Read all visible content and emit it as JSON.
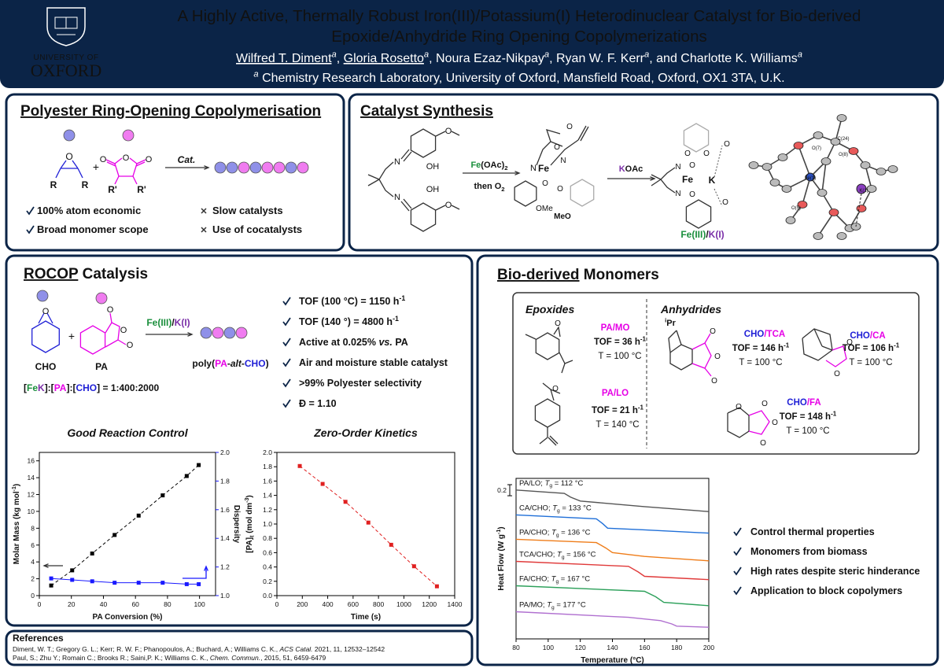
{
  "header": {
    "logo": {
      "line1": "UNIVERSITY OF",
      "line2": "OXFORD"
    },
    "title_line1": "A Highly Active, Thermally Robust Iron(III)/Potassium(I) Heterodinuclear Catalyst for Bio-derived",
    "title_line2": "Epoxide/Anhydride Ring Opening Copolymerizations",
    "authors": [
      {
        "name": "Wilfred T. Diment",
        "sup": "a",
        "after": ", ",
        "underlined": true
      },
      {
        "name": "Gloria Rosetto",
        "sup": "a",
        "after": ", ",
        "underlined": true
      },
      {
        "name": "Noura Ezaz-Nikpay",
        "sup": "a",
        "after": ", "
      },
      {
        "name": "Ryan W. F. Kerr",
        "sup": "a",
        "after": ", and "
      },
      {
        "name": "Charlotte K. Williams",
        "sup": "a"
      }
    ],
    "affiliation": {
      "sup": "a",
      "text": " Chemistry Research Laboratory, University of Oxford, Mansfield Road, Oxford, OX1 3TA, U.K."
    }
  },
  "structures": {
    "o": "O",
    "n": "N",
    "oh": "OH",
    "fe": "Fe",
    "k": "K",
    "ome": "OMe",
    "meo": "MeO"
  },
  "rocop_intro": {
    "title": "Polyester Ring-Opening Copolymerisation",
    "epoxide_labels": [
      "R",
      "R"
    ],
    "plus": "+",
    "anhydride_labels": [
      "R'",
      "R'"
    ],
    "arrow_label": "Cat.",
    "pros": [
      "100% atom economic",
      "Broad monomer scope"
    ],
    "cons": [
      "Slow catalysts",
      "Use of cocatalysts"
    ]
  },
  "synthesis": {
    "title": "Catalyst Synthesis",
    "step1_reagent": [
      {
        "text": "Fe",
        "color": "#1a8f3c"
      },
      {
        "text": "(OAc)"
      },
      {
        "text": "2",
        "sub": true
      }
    ],
    "step1_then": [
      {
        "text": "then O"
      },
      {
        "text": "2",
        "sub": true
      }
    ],
    "step2_reagent": [
      {
        "text": "K",
        "color": "#7b2fa8"
      },
      {
        "text": "OAc"
      }
    ],
    "product_name": [
      {
        "text": "Fe(III)",
        "color": "#1a8f3c"
      },
      {
        "text": "/"
      },
      {
        "text": "K(I)",
        "color": "#7b2fa8"
      }
    ],
    "crystal_labels": [
      "O(7)",
      "C(24)",
      "O(8)",
      "Fe(1)",
      "K(1)",
      "O(5)"
    ]
  },
  "rocop_catalysis": {
    "title": [
      {
        "text": "ROCOP",
        "underline": true
      },
      {
        "text": " Catalysis"
      }
    ],
    "monomer1": "CHO",
    "monomer2": "PA",
    "plus": "+",
    "catalyst": [
      {
        "text": "Fe(III)",
        "color": "#1a8f3c"
      },
      {
        "text": "/"
      },
      {
        "text": "K(I)",
        "color": "#7b2fa8"
      }
    ],
    "product": [
      {
        "text": "poly("
      },
      {
        "text": "PA",
        "color": "#e600e6"
      },
      {
        "text": "-"
      },
      {
        "text": "alt",
        "italic": true
      },
      {
        "text": "-"
      },
      {
        "text": "CHO",
        "color": "#1f1fd6"
      },
      {
        "text": ")"
      }
    ],
    "ratio": [
      {
        "text": "["
      },
      {
        "text": "Fe",
        "color": "#1a8f3c"
      },
      {
        "text": "K",
        "color": "#7b2fa8"
      },
      {
        "text": "]:["
      },
      {
        "text": "PA",
        "color": "#e600e6"
      },
      {
        "text": "]:["
      },
      {
        "text": "CHO",
        "color": "#1f1fd6"
      },
      {
        "text": "] = 1:400:2000"
      }
    ],
    "bullets": [
      [
        {
          "text": "TOF (100 °C) = 1150 h"
        },
        {
          "text": "-1",
          "sup": true
        }
      ],
      [
        {
          "text": "TOF (140 °) = 4800 h"
        },
        {
          "text": "-1",
          "sup": true
        }
      ],
      [
        {
          "text": "Active at 0.025% "
        },
        {
          "text": "vs.",
          "italic": true
        },
        {
          "text": " PA"
        }
      ],
      [
        {
          "text": "Air and moisture stable catalyst"
        }
      ],
      [
        {
          "text": ">99% Polyester selectivity"
        }
      ],
      [
        {
          "text": "Đ = 1.10"
        }
      ]
    ]
  },
  "monomers": {
    "title": [
      {
        "text": "Bio-derived",
        "underline": true
      },
      {
        "text": " Monomers"
      }
    ],
    "epoxides_heading": "Epoxides",
    "anhydrides_heading": "Anhydrides",
    "ipr": [
      {
        "text": "i",
        "sup": true
      },
      {
        "text": "Pr"
      }
    ],
    "entries": [
      {
        "pair": [
          {
            "text": "PA/MO",
            "color": "#e600e6"
          }
        ],
        "tof": [
          {
            "text": "TOF = 36 h"
          },
          {
            "text": "-1",
            "sup": true
          }
        ],
        "temp": "T = 100 °C"
      },
      {
        "pair": [
          {
            "text": "PA/LO",
            "color": "#e600e6"
          }
        ],
        "tof": [
          {
            "text": "TOF = 21 h"
          },
          {
            "text": "-1",
            "sup": true
          }
        ],
        "temp": "T = 140 °C"
      },
      {
        "pair": [
          {
            "text": "CHO",
            "color": "#1f1fd6"
          },
          {
            "text": "/TCA",
            "color": "#e600e6"
          }
        ],
        "tof": [
          {
            "text": "TOF = 146 h"
          },
          {
            "text": "-1",
            "sup": true
          }
        ],
        "temp": "T = 100 °C"
      },
      {
        "pair": [
          {
            "text": "CHO",
            "color": "#1f1fd6"
          },
          {
            "text": "/CA",
            "color": "#e600e6"
          }
        ],
        "tof": [
          {
            "text": "TOF = 106 h"
          },
          {
            "text": "-1",
            "sup": true
          }
        ],
        "temp": "T = 100 °C"
      },
      {
        "pair": [
          {
            "text": "CHO",
            "color": "#1f1fd6"
          },
          {
            "text": "/FA",
            "color": "#e600e6"
          }
        ],
        "tof": [
          {
            "text": "TOF = 148 h"
          },
          {
            "text": "-1",
            "sup": true
          }
        ],
        "temp": "T = 100 °C"
      }
    ],
    "bullets": [
      "Control thermal properties",
      "Monomers from biomass",
      "High rates despite steric hinderance",
      "Application to block copolymers"
    ]
  },
  "chart_data": [
    {
      "type": "scatter",
      "title": "Good Reaction Control",
      "xlabel": "PA Conversion (%)",
      "ylabel": [
        {
          "text": "Molar Mass (kg mol"
        },
        {
          "text": "-1",
          "sup": true
        },
        {
          "text": ")"
        }
      ],
      "y2label": "Dispersity",
      "x": [
        7.4,
        20.5,
        33,
        47,
        62,
        77,
        92,
        99.5
      ],
      "xlim": [
        0,
        110
      ],
      "xticks": [
        0,
        20,
        40,
        60,
        80,
        100
      ],
      "ylim": [
        0,
        17
      ],
      "yticks": [
        0,
        2,
        4,
        6,
        8,
        10,
        12,
        14,
        16
      ],
      "y2lim": [
        1,
        2
      ],
      "y2ticks": [
        {
          "value": 1,
          "label": "1.0"
        },
        {
          "value": 1.2,
          "label": "1.2"
        },
        {
          "value": 1.4,
          "label": "1.4"
        },
        {
          "value": 1.6,
          "label": "1.6"
        },
        {
          "value": 1.8,
          "label": "1.8"
        },
        {
          "value": 2,
          "label": "2.0"
        }
      ],
      "series": [
        {
          "color": "#000000",
          "line": "dashed",
          "values": [
            1.2,
            3.0,
            5.0,
            7.2,
            9.5,
            11.9,
            14.2,
            15.5
          ]
        },
        {
          "color": "#1a1aff",
          "line": "solid",
          "axis": "y2",
          "values": [
            1.12,
            1.11,
            1.1,
            1.09,
            1.09,
            1.09,
            1.08,
            1.08
          ]
        }
      ]
    },
    {
      "type": "scatter",
      "title": "Zero-Order Kinetics",
      "xlabel": "Time (s)",
      "ylabel": [
        {
          "text": "[PA]"
        },
        {
          "text": "t",
          "sub": true
        },
        {
          "text": " (mol dm"
        },
        {
          "text": "-3",
          "sup": true
        },
        {
          "text": ")"
        }
      ],
      "x": [
        180,
        360,
        540,
        720,
        900,
        1080,
        1260
      ],
      "xlim": [
        0,
        1400
      ],
      "xticks": [
        0,
        200,
        400,
        600,
        800,
        1000,
        1200,
        1400
      ],
      "ylim": [
        0,
        2
      ],
      "yticks": [
        {
          "value": 0,
          "label": "0.0"
        },
        {
          "value": 0.2,
          "label": "0.2"
        },
        {
          "value": 0.4,
          "label": "0.4"
        },
        {
          "value": 0.6,
          "label": "0.6"
        },
        {
          "value": 0.8,
          "label": "0.8"
        },
        {
          "value": 1,
          "label": "1.0"
        },
        {
          "value": 1.2,
          "label": "1.2"
        },
        {
          "value": 1.4,
          "label": "1.4"
        },
        {
          "value": 1.6,
          "label": "1.6"
        },
        {
          "value": 1.8,
          "label": "1.8"
        },
        {
          "value": 2,
          "label": "2.0"
        }
      ],
      "series": [
        {
          "color": "#e02020",
          "line": "dashed",
          "values": [
            1.81,
            1.56,
            1.31,
            1.02,
            0.71,
            0.41,
            0.13
          ]
        }
      ]
    },
    {
      "type": "line",
      "xlabel": "Temperature (°C)",
      "ylabel": [
        {
          "text": "Heat Flow (W g"
        },
        {
          "text": "-1",
          "sup": true
        },
        {
          "text": ")"
        }
      ],
      "xlim": [
        80,
        200
      ],
      "xticks": [
        80,
        100,
        120,
        140,
        160,
        180,
        200
      ],
      "ylim": [
        0,
        2.9
      ],
      "scale_bar": 0.2,
      "series": [
        {
          "label": [
            {
              "text": "PA/LO; "
            },
            {
              "text": "T",
              "italic": true
            },
            {
              "text": "g",
              "sub": true
            },
            {
              "text": " = 112 °C"
            }
          ],
          "color": "#555555",
          "x": [
            80,
            110,
            114,
            120,
            160,
            200
          ],
          "values": [
            2.69,
            2.63,
            2.56,
            2.49,
            2.39,
            2.3
          ]
        },
        {
          "label": [
            {
              "text": "CA/CHO; "
            },
            {
              "text": "T",
              "italic": true
            },
            {
              "text": "g",
              "sub": true
            },
            {
              "text": " = 133 °C"
            }
          ],
          "color": "#1f6fd8",
          "x": [
            80,
            130,
            134,
            137,
            160,
            200
          ],
          "values": [
            2.24,
            2.17,
            2.08,
            2.0,
            1.97,
            1.91
          ]
        },
        {
          "label": [
            {
              "text": "PA/CHO; "
            },
            {
              "text": "T",
              "italic": true
            },
            {
              "text": "g",
              "sub": true
            },
            {
              "text": " = 136 °C"
            }
          ],
          "color": "#ef7d1a",
          "x": [
            80,
            130,
            136,
            140,
            160,
            200
          ],
          "values": [
            1.8,
            1.74,
            1.64,
            1.56,
            1.49,
            1.41
          ]
        },
        {
          "label": [
            {
              "text": "TCA/CHO; "
            },
            {
              "text": "T",
              "italic": true
            },
            {
              "text": "g",
              "sub": true
            },
            {
              "text": " = 156 °C"
            }
          ],
          "color": "#e03a3a",
          "x": [
            80,
            150,
            156,
            160,
            200
          ],
          "values": [
            1.4,
            1.31,
            1.21,
            1.13,
            1.07
          ]
        },
        {
          "label": [
            {
              "text": "FA/CHO; "
            },
            {
              "text": "T",
              "italic": true
            },
            {
              "text": "g",
              "sub": true
            },
            {
              "text": " = 167 °C"
            }
          ],
          "color": "#2ca05a",
          "x": [
            80,
            160,
            167,
            172,
            200
          ],
          "values": [
            0.96,
            0.86,
            0.76,
            0.66,
            0.6
          ]
        },
        {
          "label": [
            {
              "text": "PA/MO; "
            },
            {
              "text": "T",
              "italic": true
            },
            {
              "text": "g",
              "sub": true
            },
            {
              "text": " = 177 °C"
            }
          ],
          "color": "#b070d0",
          "x": [
            80,
            150,
            170,
            177,
            180,
            200
          ],
          "values": [
            0.49,
            0.39,
            0.33,
            0.27,
            0.23,
            0.21
          ]
        }
      ]
    }
  ],
  "references": {
    "title": "References",
    "items": [
      [
        {
          "text": "Diment, W. T.;  Gregory G. L.; Kerr; R. W. F.; Phanopoulos, A.; Buchard, A.; Williams C. K., "
        },
        {
          "text": "ACS Catal.",
          "italic": true
        },
        {
          "text": " 2021, 11, 12532–12542"
        }
      ],
      [
        {
          "text": "Paul, S.; Zhu Y.; Romain C.; Brooks R.; Saini,P. K.; Williams C. K., "
        },
        {
          "text": "Chem. Commun.",
          "italic": true
        },
        {
          "text": ", 2015, 51, 6459-6479"
        }
      ]
    ]
  }
}
